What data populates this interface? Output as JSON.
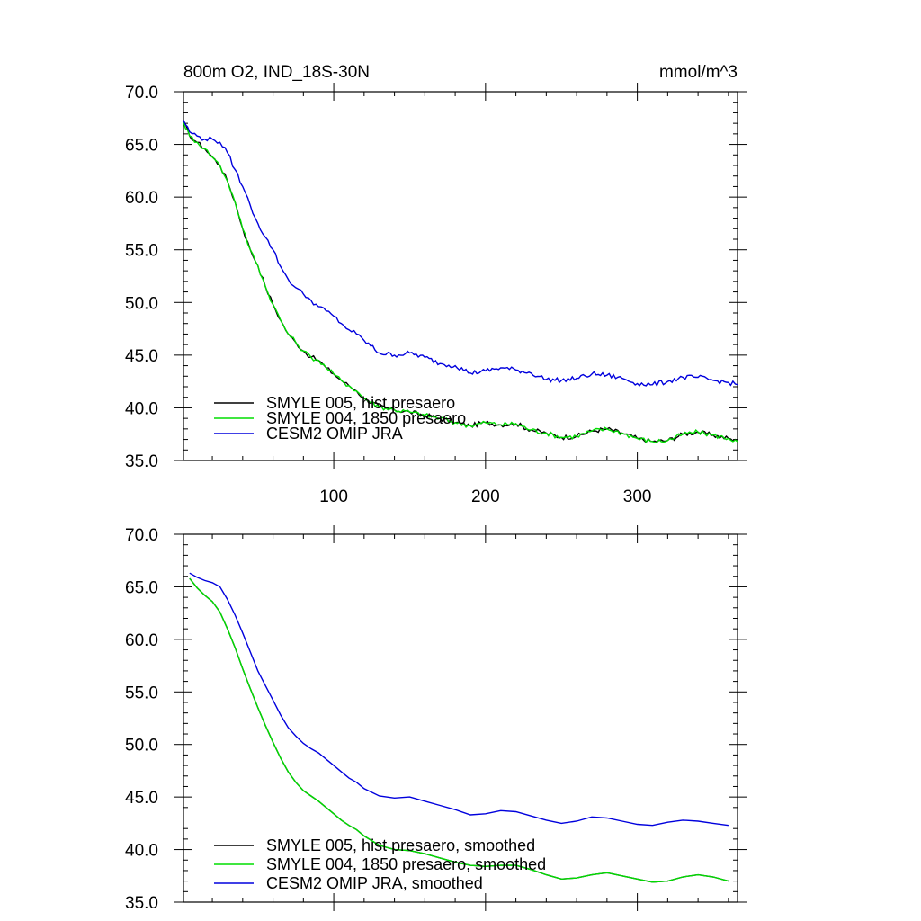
{
  "chart_data": [
    {
      "type": "line",
      "title": "800m O2, IND_18S-30N",
      "units": "mmol/m^3",
      "xlim": [
        1,
        366
      ],
      "ylim": [
        35,
        70
      ],
      "x_ticks": [
        100,
        200,
        300
      ],
      "x_tick_labels": [
        "100",
        "200",
        "300"
      ],
      "y_ticks": [
        35,
        40,
        45,
        50,
        55,
        60,
        65,
        70
      ],
      "y_tick_labels": [
        "35.0",
        "40.0",
        "45.0",
        "50.0",
        "55.0",
        "60.0",
        "65.0",
        "70.0"
      ],
      "legend_position": "bottom-left",
      "x": [
        1,
        5,
        10,
        15,
        20,
        25,
        30,
        35,
        40,
        45,
        50,
        55,
        60,
        65,
        70,
        75,
        80,
        85,
        90,
        95,
        100,
        105,
        110,
        115,
        120,
        130,
        140,
        150,
        160,
        170,
        180,
        190,
        200,
        210,
        220,
        230,
        240,
        250,
        260,
        270,
        280,
        290,
        300,
        310,
        320,
        330,
        340,
        350,
        360,
        366
      ],
      "series": [
        {
          "name": "SMYLE 005, hist presaero",
          "color": "#000000",
          "values": [
            67.2,
            65.8,
            65.2,
            64.6,
            63.8,
            63.0,
            61.5,
            59.5,
            57.0,
            55.0,
            53.5,
            51.5,
            49.8,
            48.3,
            47.0,
            46.2,
            45.4,
            44.8,
            44.5,
            43.8,
            43.2,
            42.6,
            42.1,
            41.6,
            40.9,
            40.1,
            39.8,
            39.6,
            39.3,
            39.0,
            38.6,
            38.3,
            38.6,
            38.4,
            38.5,
            37.9,
            37.6,
            37.2,
            37.3,
            37.8,
            38.0,
            37.6,
            37.1,
            36.8,
            36.9,
            37.5,
            37.7,
            37.4,
            37.1,
            36.8
          ]
        },
        {
          "name": "SMYLE 004, 1850 presaero",
          "color": "#00dd00",
          "values": [
            67.1,
            65.8,
            65.2,
            64.6,
            63.8,
            63.0,
            61.5,
            59.5,
            57.0,
            55.0,
            53.5,
            51.5,
            49.8,
            48.3,
            47.0,
            46.2,
            45.4,
            44.8,
            44.5,
            43.8,
            43.2,
            42.6,
            42.1,
            41.6,
            40.9,
            40.1,
            39.8,
            39.6,
            39.3,
            39.0,
            38.6,
            38.3,
            38.6,
            38.4,
            38.5,
            37.9,
            37.6,
            37.2,
            37.3,
            37.8,
            38.0,
            37.6,
            37.1,
            36.8,
            36.9,
            37.5,
            37.7,
            37.4,
            37.1,
            36.8
          ]
        },
        {
          "name": "CESM2 OMIP JRA",
          "color": "#0000dd",
          "values": [
            67.3,
            66.2,
            65.8,
            65.5,
            65.5,
            65.2,
            64.2,
            62.6,
            61.0,
            59.2,
            57.5,
            56.2,
            55.0,
            53.4,
            52.2,
            51.4,
            50.8,
            50.2,
            49.6,
            49.2,
            48.7,
            48.0,
            47.4,
            47.0,
            46.4,
            45.2,
            45.0,
            45.2,
            44.8,
            44.2,
            44.0,
            43.3,
            43.5,
            43.8,
            43.6,
            43.3,
            42.7,
            42.6,
            42.8,
            43.2,
            43.1,
            42.8,
            42.3,
            42.2,
            42.5,
            42.9,
            42.9,
            42.6,
            42.4,
            42.2
          ]
        }
      ]
    },
    {
      "type": "line",
      "xlim": [
        1,
        366
      ],
      "ylim": [
        35,
        70
      ],
      "x_ticks": [
        100,
        200,
        300
      ],
      "y_ticks": [
        35,
        40,
        45,
        50,
        55,
        60,
        65,
        70
      ],
      "y_tick_labels": [
        "35.0",
        "40.0",
        "45.0",
        "50.0",
        "55.0",
        "60.0",
        "65.0",
        "70.0"
      ],
      "legend_position": "bottom-left",
      "x": [
        5,
        10,
        15,
        20,
        25,
        30,
        35,
        40,
        45,
        50,
        55,
        60,
        65,
        70,
        75,
        80,
        85,
        90,
        95,
        100,
        105,
        110,
        115,
        120,
        130,
        140,
        150,
        160,
        170,
        180,
        190,
        200,
        210,
        220,
        230,
        240,
        250,
        260,
        270,
        280,
        290,
        300,
        310,
        320,
        330,
        340,
        350,
        360
      ],
      "series": [
        {
          "name": "SMYLE 005, hist presaero, smoothed",
          "color": "#000000",
          "values": [
            65.8,
            64.9,
            64.2,
            63.6,
            62.6,
            61.0,
            59.2,
            57.2,
            55.3,
            53.5,
            51.8,
            50.2,
            48.7,
            47.4,
            46.4,
            45.6,
            45.1,
            44.6,
            44.0,
            43.4,
            42.8,
            42.3,
            41.9,
            41.3,
            40.4,
            40.0,
            39.9,
            39.6,
            39.2,
            38.8,
            38.5,
            38.4,
            38.5,
            38.5,
            38.1,
            37.6,
            37.2,
            37.3,
            37.6,
            37.8,
            37.5,
            37.2,
            36.9,
            37.0,
            37.4,
            37.6,
            37.4,
            37.0
          ]
        },
        {
          "name": "SMYLE 004, 1850 presaero, smoothed",
          "color": "#00dd00",
          "values": [
            65.8,
            64.9,
            64.2,
            63.6,
            62.6,
            61.0,
            59.2,
            57.2,
            55.3,
            53.5,
            51.8,
            50.2,
            48.7,
            47.4,
            46.4,
            45.6,
            45.1,
            44.6,
            44.0,
            43.4,
            42.8,
            42.3,
            41.9,
            41.3,
            40.4,
            40.0,
            39.9,
            39.6,
            39.2,
            38.8,
            38.5,
            38.4,
            38.5,
            38.5,
            38.1,
            37.6,
            37.2,
            37.3,
            37.6,
            37.8,
            37.5,
            37.2,
            36.9,
            37.0,
            37.4,
            37.6,
            37.4,
            37.0
          ]
        },
        {
          "name": "CESM2 OMIP JRA, smoothed",
          "color": "#0000dd",
          "values": [
            66.3,
            65.9,
            65.6,
            65.4,
            65.0,
            63.8,
            62.3,
            60.6,
            58.8,
            57.0,
            55.6,
            54.2,
            52.8,
            51.6,
            50.8,
            50.1,
            49.6,
            49.2,
            48.6,
            48.0,
            47.4,
            46.8,
            46.4,
            45.8,
            45.1,
            44.9,
            45.0,
            44.6,
            44.2,
            43.8,
            43.3,
            43.4,
            43.7,
            43.6,
            43.2,
            42.8,
            42.5,
            42.7,
            43.1,
            43.0,
            42.7,
            42.4,
            42.3,
            42.6,
            42.8,
            42.7,
            42.5,
            42.3
          ]
        }
      ]
    }
  ]
}
